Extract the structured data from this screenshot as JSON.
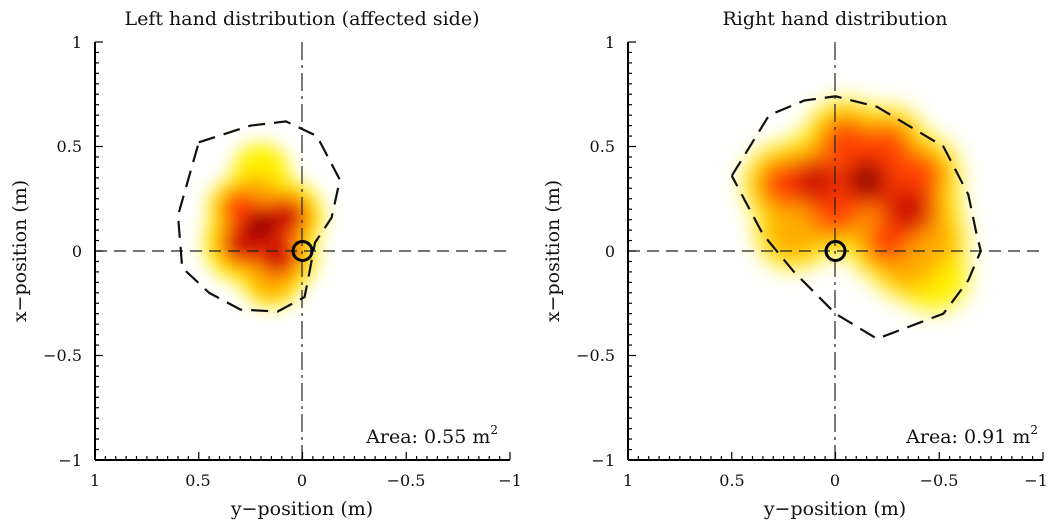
{
  "chart_data": [
    {
      "type": "heatmap",
      "title": "Left hand distribution (affected side)",
      "xlabel": "y−position (m)",
      "ylabel": "x−position (m)",
      "xlim": [
        1,
        -1
      ],
      "ylim": [
        -1,
        1
      ],
      "x_ticks": [
        "1",
        "0.5",
        "0",
        "−0.5",
        "−1"
      ],
      "y_ticks": [
        "1",
        "0.5",
        "0",
        "−0.5",
        "−1"
      ],
      "x_tick_values": [
        1,
        0.5,
        0,
        -0.5,
        -1
      ],
      "y_tick_values": [
        1,
        0.5,
        0,
        -0.5,
        -1
      ],
      "annotation": {
        "prefix": "Area: 0.55 m",
        "sup": "2",
        "value": 0.55,
        "unit": "m^2"
      },
      "origin_marker": {
        "y": 0,
        "x": 0
      },
      "boundary_polygon": [
        [
          0.5,
          0.52
        ],
        [
          0.25,
          0.6
        ],
        [
          0.08,
          0.62
        ],
        [
          -0.07,
          0.55
        ],
        [
          -0.18,
          0.34
        ],
        [
          -0.14,
          0.16
        ],
        [
          -0.06,
          0.04
        ],
        [
          -0.03,
          -0.12
        ],
        [
          -0.01,
          -0.22
        ],
        [
          0.12,
          -0.29
        ],
        [
          0.3,
          -0.28
        ],
        [
          0.45,
          -0.2
        ],
        [
          0.58,
          -0.08
        ],
        [
          0.6,
          0.17
        ],
        [
          0.5,
          0.52
        ]
      ],
      "density_peaks": [
        {
          "y": 0.2,
          "x": 0.12,
          "intensity": 1.0
        },
        {
          "y": 0.28,
          "x": 0.04,
          "intensity": 0.75
        },
        {
          "y": 0.12,
          "x": -0.02,
          "intensity": 0.7
        },
        {
          "y": 0.08,
          "x": 0.16,
          "intensity": 0.6
        },
        {
          "y": 0.3,
          "x": 0.2,
          "intensity": 0.35
        },
        {
          "y": 0.22,
          "x": 0.25,
          "intensity": 0.3
        },
        {
          "y": 0.2,
          "x": 0.38,
          "intensity": 0.15
        },
        {
          "y": 0.15,
          "x": -0.12,
          "intensity": 0.3
        }
      ],
      "grid": false,
      "colormap": [
        "#fff100",
        "#ffaa00",
        "#ff3a00",
        "#c00000",
        "#3a0000"
      ]
    },
    {
      "type": "heatmap",
      "title": "Right hand distribution",
      "xlabel": "y−position (m)",
      "ylabel": "x−position (m)",
      "xlim": [
        1,
        -1
      ],
      "ylim": [
        -1,
        1
      ],
      "x_ticks": [
        "1",
        "0.5",
        "0",
        "−0.5",
        "−1"
      ],
      "y_ticks": [
        "1",
        "0.5",
        "0",
        "−0.5",
        "−1"
      ],
      "x_tick_values": [
        1,
        0.5,
        0,
        -0.5,
        -1
      ],
      "y_tick_values": [
        1,
        0.5,
        0,
        -0.5,
        -1
      ],
      "annotation": {
        "prefix": "Area: 0.91 m",
        "sup": "2",
        "value": 0.91,
        "unit": "m^2"
      },
      "origin_marker": {
        "y": 0,
        "x": 0
      },
      "boundary_polygon": [
        [
          0.5,
          0.36
        ],
        [
          0.32,
          0.65
        ],
        [
          0.15,
          0.72
        ],
        [
          0.0,
          0.74
        ],
        [
          -0.2,
          0.69
        ],
        [
          -0.52,
          0.5
        ],
        [
          -0.64,
          0.27
        ],
        [
          -0.68,
          0.08
        ],
        [
          -0.7,
          0.0
        ],
        [
          -0.64,
          -0.14
        ],
        [
          -0.52,
          -0.3
        ],
        [
          -0.2,
          -0.42
        ],
        [
          0.0,
          -0.3
        ],
        [
          0.2,
          -0.1
        ],
        [
          0.35,
          0.08
        ],
        [
          0.5,
          0.36
        ]
      ],
      "density_peaks": [
        {
          "y": -0.15,
          "x": 0.34,
          "intensity": 1.0
        },
        {
          "y": -0.35,
          "x": 0.2,
          "intensity": 0.85
        },
        {
          "y": 0.1,
          "x": 0.33,
          "intensity": 0.7
        },
        {
          "y": 0.0,
          "x": 0.2,
          "intensity": 0.55
        },
        {
          "y": -0.05,
          "x": 0.52,
          "intensity": 0.45
        },
        {
          "y": 0.25,
          "x": 0.32,
          "intensity": 0.35
        },
        {
          "y": -0.25,
          "x": 0.5,
          "intensity": 0.35
        },
        {
          "y": -0.4,
          "x": 0.36,
          "intensity": 0.4
        },
        {
          "y": -0.25,
          "x": 0.05,
          "intensity": 0.35
        },
        {
          "y": -0.35,
          "x": -0.05,
          "intensity": 0.25
        },
        {
          "y": -0.45,
          "x": 0.05,
          "intensity": 0.25
        },
        {
          "y": -0.47,
          "x": -0.12,
          "intensity": 0.15
        },
        {
          "y": 0.2,
          "x": 0.1,
          "intensity": 0.3
        }
      ],
      "grid": false,
      "colormap": [
        "#fff100",
        "#ffaa00",
        "#ff3a00",
        "#c00000",
        "#3a0000"
      ]
    }
  ]
}
